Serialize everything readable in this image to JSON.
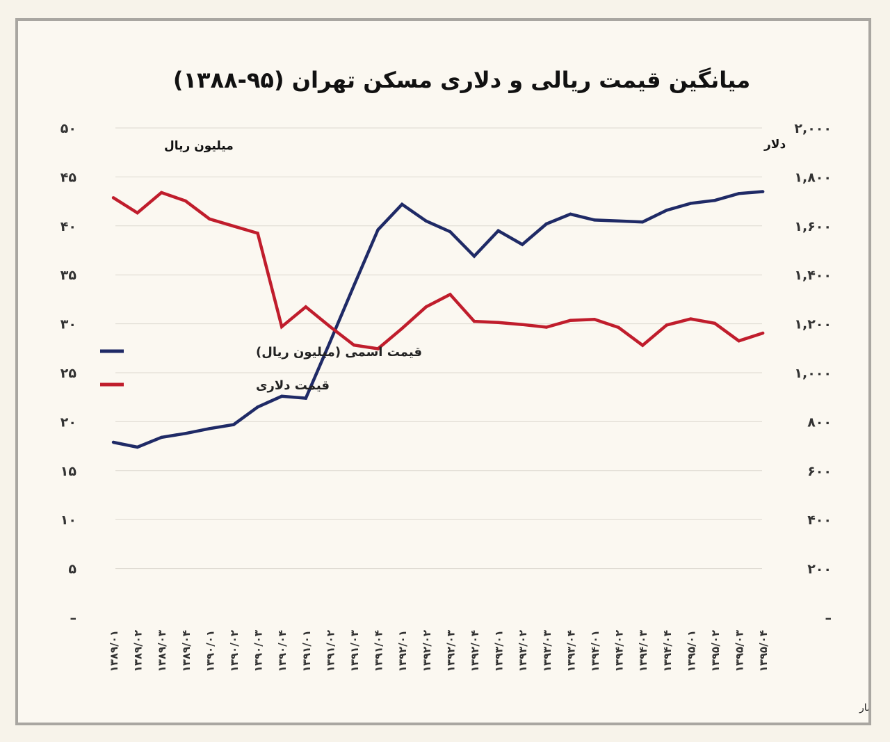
{
  "chart_data": {
    "type": "line",
    "title": "میانگین قیمت  ریالی و دلاری مسکن تهران (۹۵-۱۳۸۸)",
    "left_unit": "میلیون ریال",
    "right_unit": "دلار",
    "source": "تحلیل و استنتاج: احسان سلطانی بر اساس داده های بانک مرکزی و مرکز آمار",
    "y_left": {
      "range": [
        0,
        50
      ],
      "ticks": [
        "–",
        "۵",
        "۱۰",
        "۱۵",
        "۲۰",
        "۲۵",
        "۳۰",
        "۳۵",
        "۴۰",
        "۴۵",
        "۵۰"
      ]
    },
    "y_right": {
      "range": [
        0,
        2000
      ],
      "ticks": [
        "–",
        "۲۰۰",
        "۴۰۰",
        "۶۰۰",
        "۸۰۰",
        "۱,۰۰۰",
        "۱,۲۰۰",
        "۱,۴۰۰",
        "۱,۶۰۰",
        "۱,۸۰۰",
        "۲,۰۰۰"
      ]
    },
    "categories": [
      "۱۳۸۹/۰۱",
      "۱۳۸۹/۰۲",
      "۱۳۸۹/۰۳",
      "۱۳۸۹/۰۴",
      "۱۳۹۰/۰۱",
      "۱۳۹۰/۰۲",
      "۱۳۹۰/۰۳",
      "۱۳۹۰/۰۴",
      "۱۳۹۱/۰۱",
      "۱۳۹۱/۰۲",
      "۱۳۹۱/۰۳",
      "۱۳۹۱/۰۴",
      "۱۳۹۲/۰۱",
      "۱۳۹۲/۰۲",
      "۱۳۹۲/۰۳",
      "۱۳۹۲/۰۴",
      "۱۳۹۳/۰۱",
      "۱۳۹۳/۰۲",
      "۱۳۹۳/۰۳",
      "۱۳۹۳/۰۴",
      "۱۳۹۴/۰۱",
      "۱۳۹۴/۰۲",
      "۱۳۹۴/۰۳",
      "۱۳۹۴/۰۴",
      "۱۳۹۵/۰۱",
      "۱۳۹۵/۰۲",
      "۱۳۹۵/۰۳",
      "۱۳۹۵/۰۴"
    ],
    "series": [
      {
        "name": "قیمت اسمی (میلیون ریال)",
        "axis": "left",
        "color": "#1f2a66",
        "values": [
          17.9,
          17.4,
          18.4,
          18.8,
          19.3,
          19.7,
          21.5,
          22.6,
          22.4,
          28.1,
          33.9,
          39.6,
          42.2,
          40.5,
          39.4,
          36.9,
          39.5,
          38.1,
          40.2,
          41.2,
          40.6,
          40.5,
          40.4,
          41.6,
          42.3,
          42.6,
          43.3,
          43.5
        ]
      },
      {
        "name": "قیمت دلاری",
        "axis": "right",
        "color": "#c01d2c",
        "values": [
          1715,
          1653,
          1736,
          1702,
          1628,
          1599,
          1570,
          1188,
          1269,
          1189,
          1113,
          1098,
          1181,
          1269,
          1320,
          1210,
          1205,
          1197,
          1186,
          1214,
          1218,
          1185,
          1112,
          1195,
          1220,
          1202,
          1130,
          1162
        ]
      }
    ],
    "legend_placement": "left, inside plot",
    "grid": true
  }
}
